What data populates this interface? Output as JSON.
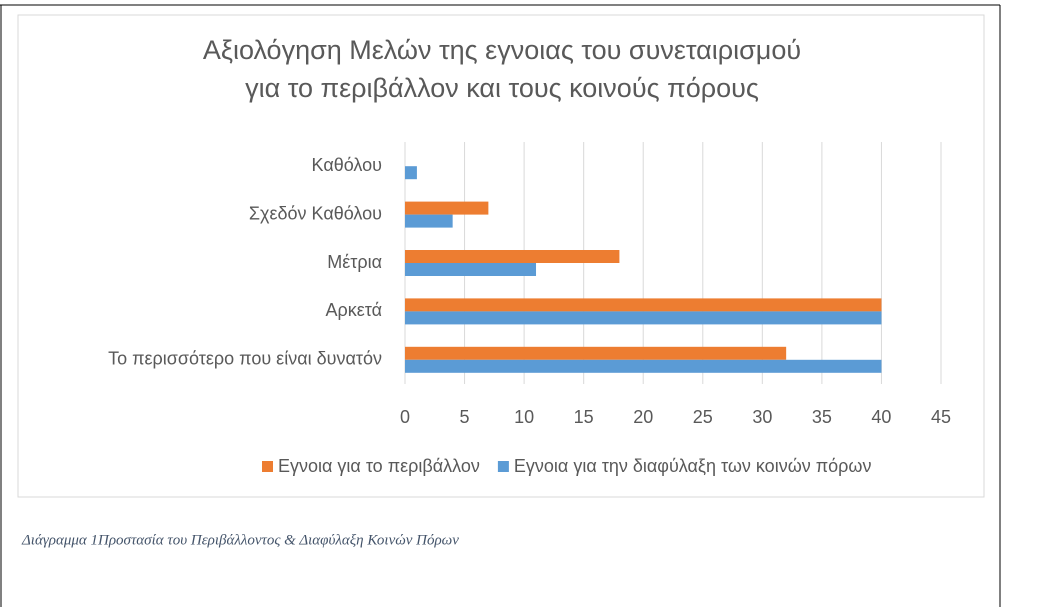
{
  "chart_data": {
    "type": "hbar",
    "title": [
      "Αξιολόγηση Μελών της εγνοιας του συνεταιρισμού",
      "για το περιβάλλον και τους κοινούς πόρους"
    ],
    "categories": [
      "Καθόλου",
      "Σχεδόν Καθόλου",
      "Μέτρια",
      "Αρκετά",
      "Το περισσότερο που είναι δυνατόν"
    ],
    "series": [
      {
        "name": "Εγνοια για το περιβάλλον",
        "color": "#ed7d31",
        "values": [
          0,
          7,
          18,
          40,
          32
        ]
      },
      {
        "name": "Εγνοια για την διαφύλαξη των κοινών πόρων",
        "color": "#5b9bd5",
        "values": [
          1,
          4,
          11,
          40,
          40
        ]
      }
    ],
    "xlim": [
      0,
      45
    ],
    "xticks": [
      0,
      5,
      10,
      15,
      20,
      25,
      30,
      35,
      40,
      45
    ],
    "grid": true,
    "legend": "bottom"
  },
  "caption": "Διάγραμμα 1Προστασία του Περιβάλλοντος & Διαφύλαξη Κοινών Πόρων"
}
